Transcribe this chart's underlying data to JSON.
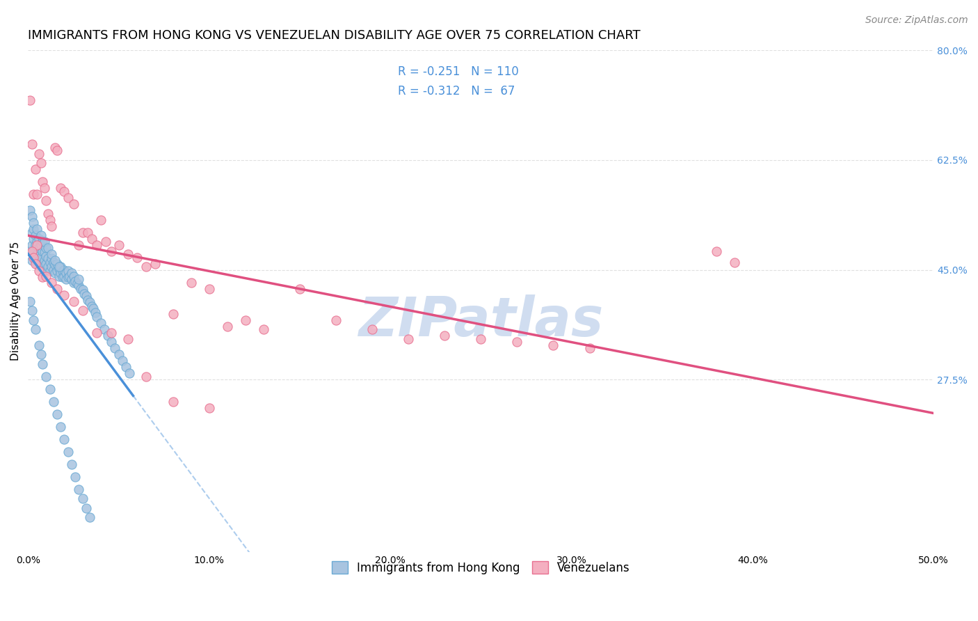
{
  "title": "IMMIGRANTS FROM HONG KONG VS VENEZUELAN DISABILITY AGE OVER 75 CORRELATION CHART",
  "source": "Source: ZipAtlas.com",
  "ylabel": "Disability Age Over 75",
  "xlim": [
    0.0,
    0.5
  ],
  "ylim": [
    0.0,
    0.8
  ],
  "xtick_labels": [
    "0.0%",
    "10.0%",
    "20.0%",
    "30.0%",
    "40.0%",
    "50.0%"
  ],
  "xtick_vals": [
    0.0,
    0.1,
    0.2,
    0.3,
    0.4,
    0.5
  ],
  "ytick_labels": [
    "27.5%",
    "45.0%",
    "62.5%",
    "80.0%"
  ],
  "ytick_vals": [
    0.275,
    0.45,
    0.625,
    0.8
  ],
  "hk_color": "#a8c4e0",
  "hk_edge_color": "#6aaad4",
  "ven_color": "#f4afc0",
  "ven_edge_color": "#e87090",
  "hk_R": -0.251,
  "hk_N": 110,
  "ven_R": -0.312,
  "ven_N": 67,
  "hk_line_color": "#4a90d9",
  "ven_line_color": "#e05080",
  "watermark": "ZIPatlas",
  "legend_label_hk": "Immigrants from Hong Kong",
  "legend_label_ven": "Venezuelans",
  "hk_scatter_x": [
    0.001,
    0.002,
    0.002,
    0.002,
    0.003,
    0.003,
    0.003,
    0.004,
    0.004,
    0.004,
    0.005,
    0.005,
    0.005,
    0.006,
    0.006,
    0.006,
    0.007,
    0.007,
    0.007,
    0.008,
    0.008,
    0.008,
    0.009,
    0.009,
    0.009,
    0.01,
    0.01,
    0.01,
    0.011,
    0.011,
    0.012,
    0.012,
    0.013,
    0.013,
    0.014,
    0.014,
    0.015,
    0.015,
    0.016,
    0.016,
    0.017,
    0.017,
    0.018,
    0.018,
    0.019,
    0.019,
    0.02,
    0.02,
    0.021,
    0.021,
    0.022,
    0.022,
    0.023,
    0.024,
    0.024,
    0.025,
    0.025,
    0.026,
    0.027,
    0.028,
    0.028,
    0.029,
    0.03,
    0.031,
    0.032,
    0.033,
    0.034,
    0.035,
    0.036,
    0.037,
    0.038,
    0.04,
    0.042,
    0.044,
    0.046,
    0.048,
    0.05,
    0.052,
    0.054,
    0.056,
    0.001,
    0.002,
    0.003,
    0.004,
    0.006,
    0.007,
    0.008,
    0.01,
    0.012,
    0.014,
    0.016,
    0.018,
    0.02,
    0.022,
    0.024,
    0.026,
    0.028,
    0.03,
    0.032,
    0.034,
    0.001,
    0.002,
    0.003,
    0.005,
    0.007,
    0.009,
    0.011,
    0.013,
    0.015,
    0.017
  ],
  "hk_scatter_y": [
    0.48,
    0.49,
    0.51,
    0.465,
    0.5,
    0.48,
    0.515,
    0.47,
    0.49,
    0.505,
    0.46,
    0.475,
    0.495,
    0.485,
    0.465,
    0.5,
    0.455,
    0.47,
    0.49,
    0.46,
    0.48,
    0.495,
    0.45,
    0.465,
    0.478,
    0.46,
    0.472,
    0.485,
    0.455,
    0.468,
    0.448,
    0.462,
    0.455,
    0.468,
    0.45,
    0.462,
    0.445,
    0.458,
    0.448,
    0.46,
    0.44,
    0.452,
    0.445,
    0.455,
    0.438,
    0.448,
    0.44,
    0.45,
    0.435,
    0.445,
    0.438,
    0.448,
    0.44,
    0.435,
    0.445,
    0.43,
    0.44,
    0.432,
    0.428,
    0.425,
    0.435,
    0.42,
    0.418,
    0.412,
    0.408,
    0.402,
    0.398,
    0.392,
    0.388,
    0.382,
    0.375,
    0.365,
    0.355,
    0.345,
    0.335,
    0.325,
    0.315,
    0.305,
    0.295,
    0.285,
    0.4,
    0.385,
    0.37,
    0.355,
    0.33,
    0.315,
    0.3,
    0.28,
    0.26,
    0.24,
    0.22,
    0.2,
    0.18,
    0.16,
    0.14,
    0.12,
    0.1,
    0.085,
    0.07,
    0.055,
    0.545,
    0.535,
    0.525,
    0.515,
    0.505,
    0.495,
    0.485,
    0.475,
    0.465,
    0.455
  ],
  "ven_scatter_x": [
    0.001,
    0.002,
    0.003,
    0.004,
    0.005,
    0.005,
    0.006,
    0.007,
    0.008,
    0.009,
    0.01,
    0.011,
    0.012,
    0.013,
    0.015,
    0.016,
    0.018,
    0.02,
    0.022,
    0.025,
    0.028,
    0.03,
    0.033,
    0.035,
    0.038,
    0.04,
    0.043,
    0.046,
    0.05,
    0.055,
    0.06,
    0.065,
    0.07,
    0.08,
    0.09,
    0.1,
    0.11,
    0.12,
    0.13,
    0.15,
    0.17,
    0.19,
    0.21,
    0.23,
    0.25,
    0.27,
    0.29,
    0.31,
    0.38,
    0.39,
    0.002,
    0.003,
    0.004,
    0.006,
    0.008,
    0.01,
    0.013,
    0.016,
    0.02,
    0.025,
    0.03,
    0.038,
    0.046,
    0.055,
    0.065,
    0.08,
    0.1
  ],
  "ven_scatter_y": [
    0.72,
    0.65,
    0.57,
    0.61,
    0.57,
    0.49,
    0.635,
    0.62,
    0.59,
    0.58,
    0.56,
    0.54,
    0.53,
    0.52,
    0.645,
    0.64,
    0.58,
    0.575,
    0.565,
    0.555,
    0.49,
    0.51,
    0.51,
    0.5,
    0.49,
    0.53,
    0.495,
    0.48,
    0.49,
    0.475,
    0.47,
    0.455,
    0.46,
    0.38,
    0.43,
    0.42,
    0.36,
    0.37,
    0.355,
    0.42,
    0.37,
    0.355,
    0.34,
    0.345,
    0.34,
    0.335,
    0.33,
    0.325,
    0.48,
    0.462,
    0.48,
    0.47,
    0.46,
    0.448,
    0.438,
    0.44,
    0.43,
    0.42,
    0.41,
    0.4,
    0.385,
    0.35,
    0.35,
    0.34,
    0.28,
    0.24,
    0.23
  ],
  "background_color": "#ffffff",
  "grid_color": "#dddddd",
  "title_fontsize": 13,
  "axis_label_fontsize": 11,
  "tick_fontsize": 10,
  "legend_fontsize": 12,
  "source_fontsize": 10,
  "watermark_color": "#c8d8ee",
  "right_ytick_color": "#4a90d9"
}
